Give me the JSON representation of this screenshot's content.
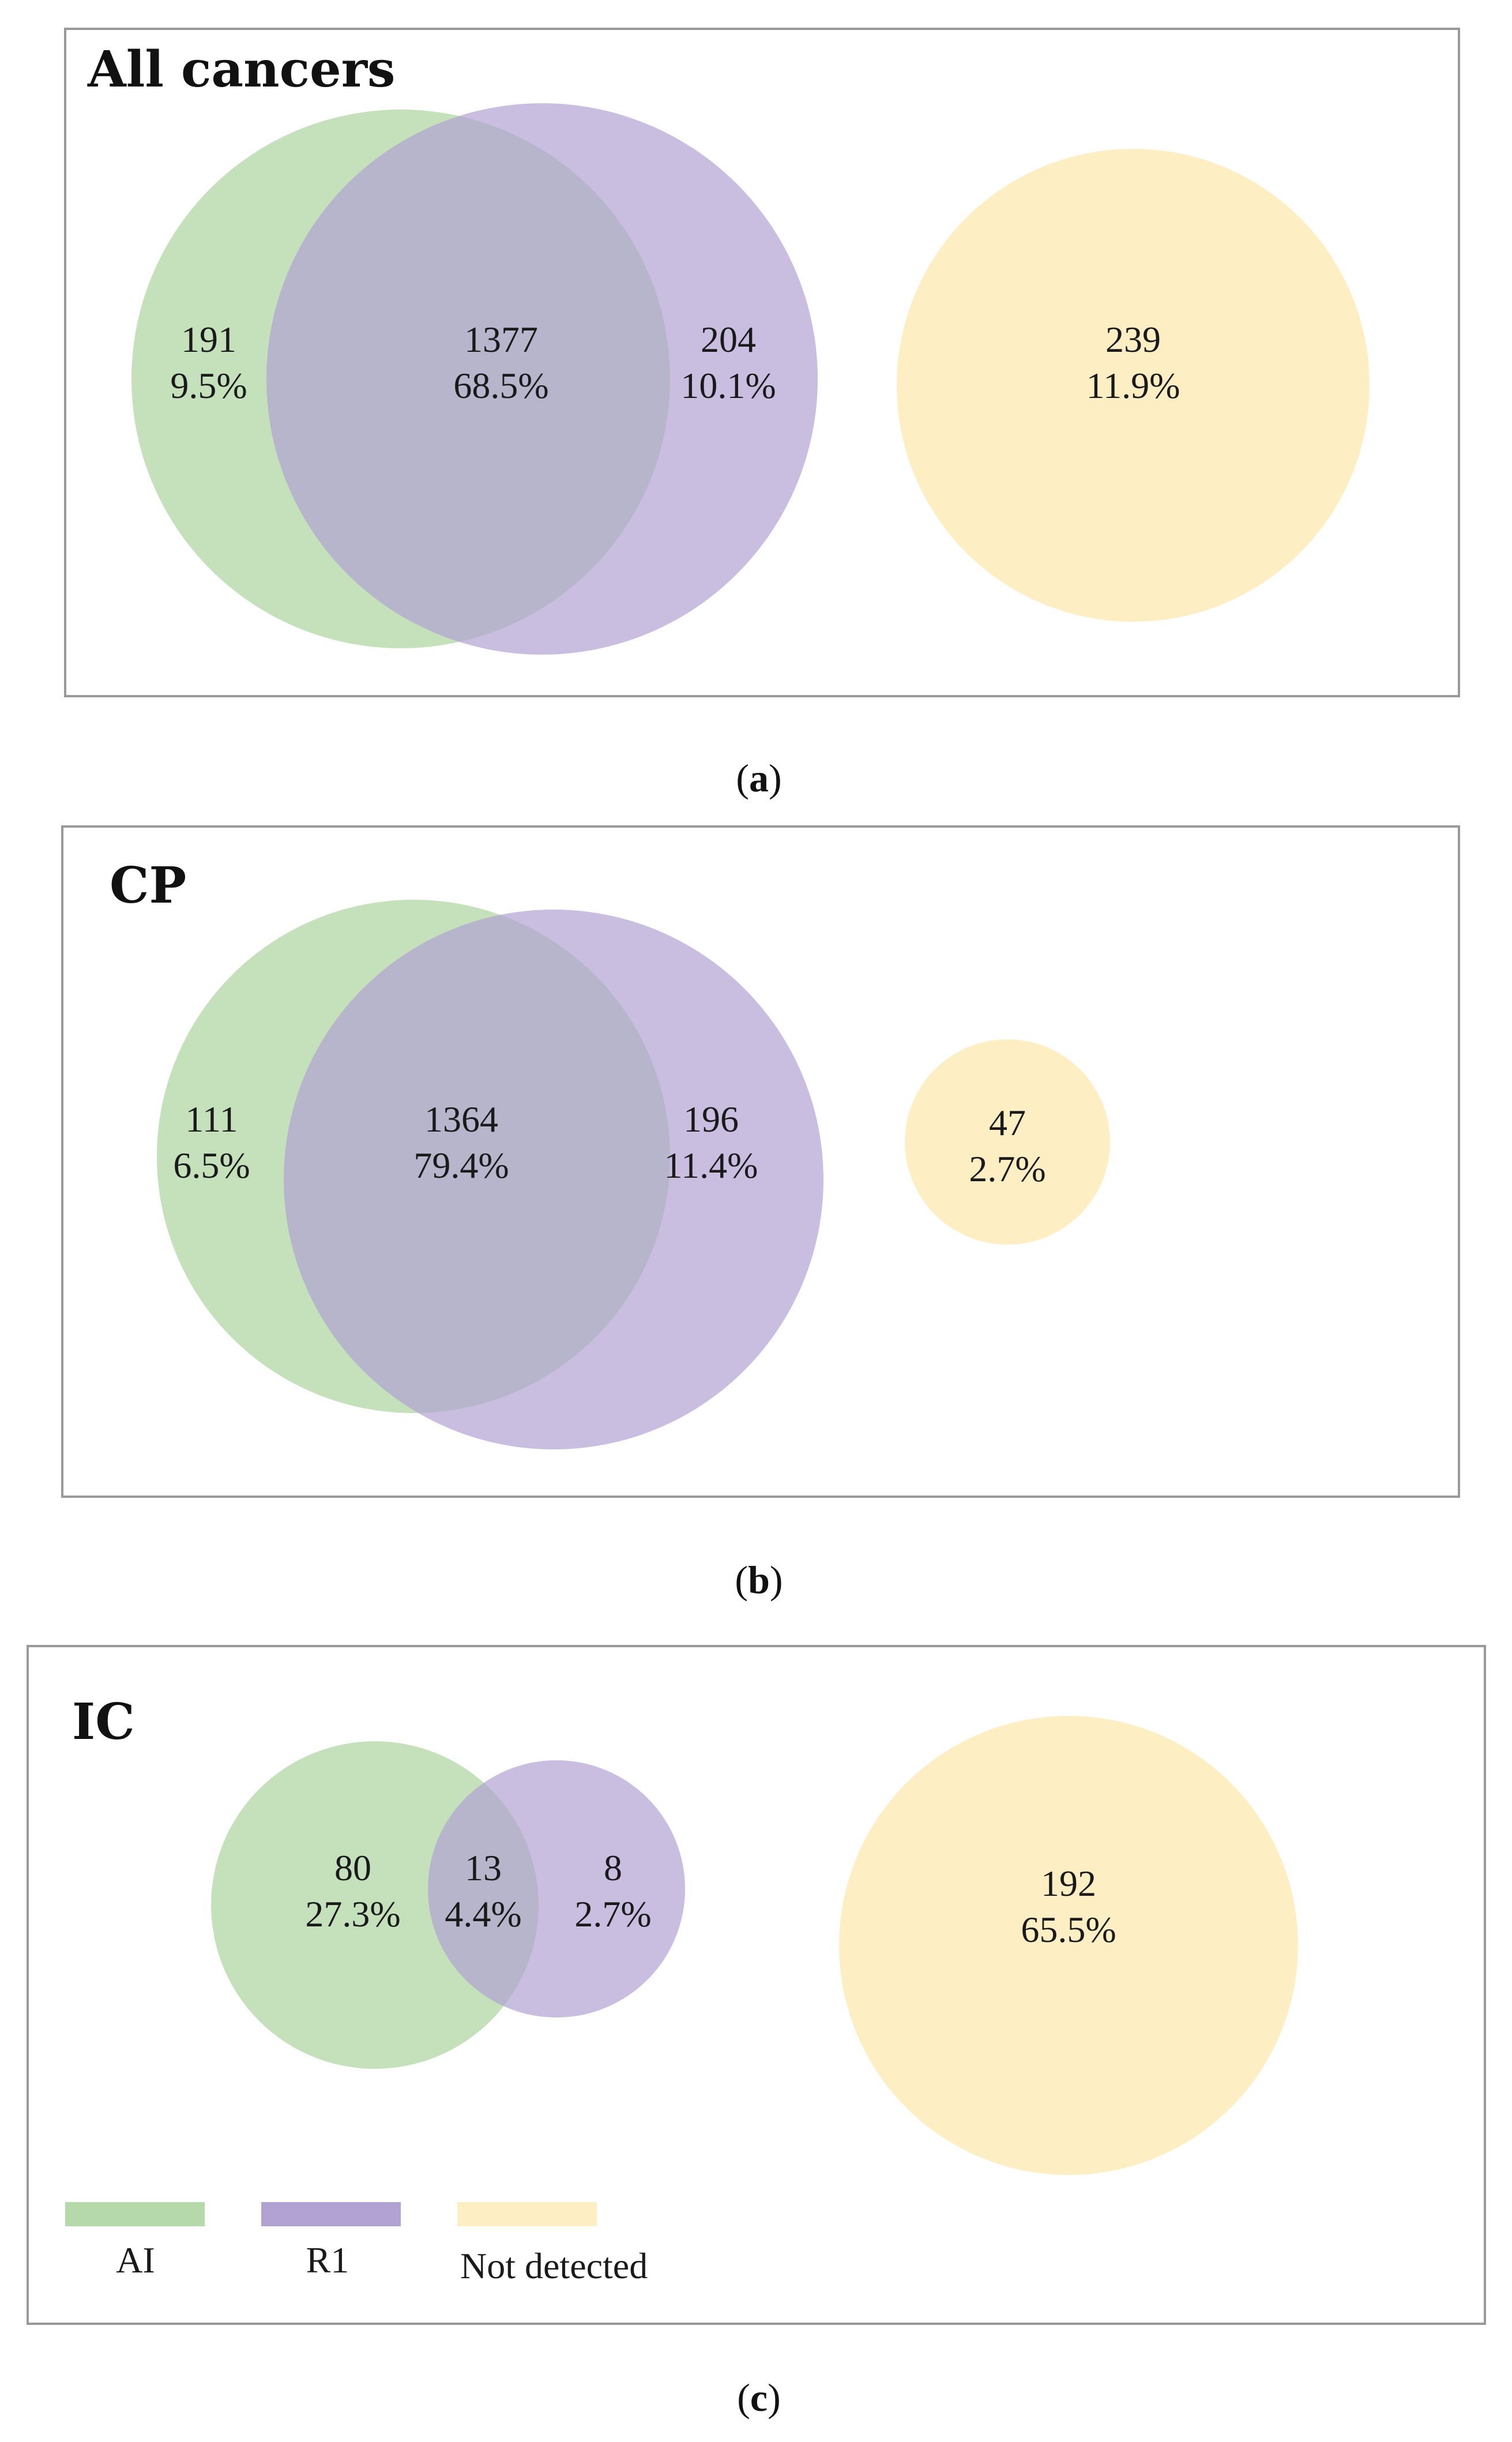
{
  "colors": {
    "ai": "#b5d9aa",
    "r1": "#b2a2d3",
    "not_detected": "#fdeec4",
    "frame": "#999999"
  },
  "panels": [
    {
      "title": "All cancers",
      "caption_letter": "a",
      "ai_only": {
        "count": "191",
        "pct": "9.5%"
      },
      "both": {
        "count": "1377",
        "pct": "68.5%"
      },
      "r1_only": {
        "count": "204",
        "pct": "10.1%"
      },
      "not_detected": {
        "count": "239",
        "pct": "11.9%"
      }
    },
    {
      "title": "CP",
      "caption_letter": "b",
      "ai_only": {
        "count": "111",
        "pct": "6.5%"
      },
      "both": {
        "count": "1364",
        "pct": "79.4%"
      },
      "r1_only": {
        "count": "196",
        "pct": "11.4%"
      },
      "not_detected": {
        "count": "47",
        "pct": "2.7%"
      }
    },
    {
      "title": "IC",
      "caption_letter": "c",
      "ai_only": {
        "count": "80",
        "pct": "27.3%"
      },
      "both": {
        "count": "13",
        "pct": "4.4%"
      },
      "r1_only": {
        "count": "8",
        "pct": "2.7%"
      },
      "not_detected": {
        "count": "192",
        "pct": "65.5%"
      }
    }
  ],
  "caption_open": "(",
  "caption_close": ")",
  "legend": [
    {
      "label": "AI",
      "color_key": "ai"
    },
    {
      "label": "R1",
      "color_key": "r1"
    },
    {
      "label": "Not detected",
      "color_key": "not_detected"
    }
  ]
}
